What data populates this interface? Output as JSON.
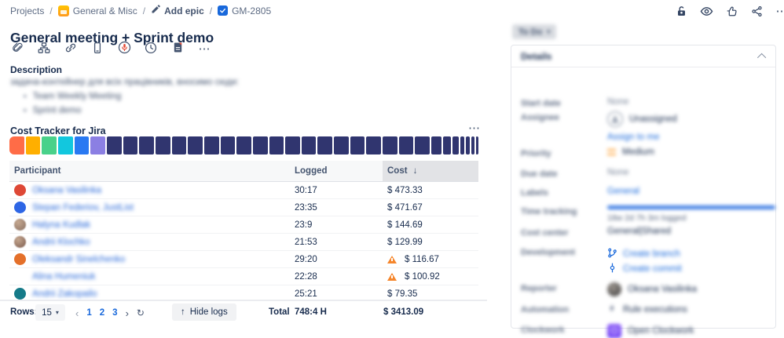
{
  "colors": {
    "accent": "#1868DB",
    "navy": "#172B4D",
    "warning": "#F5862C",
    "bar_default": "#30356F"
  },
  "icons": {
    "chevron_down": "▾",
    "chevron_left": "‹",
    "chevron_right": "›",
    "arrow_up": "↑",
    "arrow_down": "↓",
    "refresh": "↻",
    "more": "⋯",
    "bullet": "•"
  },
  "breadcrumb": {
    "separator": "/",
    "items": [
      {
        "label": "Projects"
      },
      {
        "label": "General & Misc",
        "icon": "project-icon"
      },
      {
        "label": "Add epic",
        "icon": "pencil-icon"
      },
      {
        "label": "GM-2805",
        "icon": "task-check-icon"
      }
    ]
  },
  "issue": {
    "title": "General meeting + Sprint demo"
  },
  "toolbar": {
    "icons": [
      "attachment",
      "subtask",
      "link",
      "mobile",
      "recording",
      "clock",
      "report",
      "more"
    ]
  },
  "description": {
    "heading": "Description",
    "text": "задача-контейнер для всіх працівників, вносимо сюди:",
    "bullets": [
      "Team Weekly Meeting",
      "Sprint demo"
    ]
  },
  "cost_tracker": {
    "heading": "Cost Tracker for Jira",
    "chart_data": {
      "type": "bar",
      "title": "Cost Tracker for Jira",
      "description": "Segmented cost distribution bar, one segment per logged work item, widths proportional to share",
      "segments": [
        {
          "color": "#FF6C47",
          "w": 19
        },
        {
          "color": "#FFAF00",
          "w": 19
        },
        {
          "color": "#49D18A",
          "w": 19
        },
        {
          "color": "#12C7DE",
          "w": 19
        },
        {
          "color": "#2979F2",
          "w": 19
        },
        {
          "color": "#8B7FE3",
          "w": 19
        },
        {
          "color": "#30356F",
          "w": 19,
          "repeat": 20
        },
        {
          "color": "#30356F",
          "w": 13
        },
        {
          "color": "#30356F",
          "w": 10
        },
        {
          "color": "#30356F",
          "w": 8
        },
        {
          "color": "#30356F",
          "w": 6
        },
        {
          "color": "#30356F",
          "w": 5
        },
        {
          "color": "#30356F",
          "w": 4
        },
        {
          "color": "#30356F",
          "w": 3
        }
      ]
    },
    "table": {
      "columns": [
        "Participant",
        "Logged",
        "Cost"
      ],
      "sorted_by": "Cost",
      "sort_direction": "desc",
      "rows": [
        {
          "name": "Oksana Vasilinka",
          "avatar": {
            "type": "color",
            "color": "#DE4836"
          },
          "logged": "30:17",
          "cost": "$ 473.33",
          "warning": false
        },
        {
          "name": "Stepan Federiov, JustList",
          "avatar": {
            "type": "color",
            "color": "#2E66E5"
          },
          "logged": "23:35",
          "cost": "$ 471.67",
          "warning": false
        },
        {
          "name": "Halyna Kudlak",
          "avatar": {
            "type": "photo",
            "color": "#8A7163"
          },
          "logged": "23:9",
          "cost": "$ 144.69",
          "warning": false
        },
        {
          "name": "Andrii Klochko",
          "avatar": {
            "type": "photo",
            "color": "#7C5B4E"
          },
          "logged": "21:53",
          "cost": "$ 129.99",
          "warning": false
        },
        {
          "name": "Oleksandr Sinelchenko",
          "avatar": {
            "type": "color",
            "color": "#E4702A"
          },
          "logged": "29:20",
          "cost": "$ 116.67",
          "warning": true
        },
        {
          "name": "Alina Humeniuk",
          "avatar": null,
          "logged": "22:28",
          "cost": "$ 100.92",
          "warning": true
        },
        {
          "name": "Andrii Zakopailo",
          "avatar": {
            "type": "color",
            "color": "#157A88"
          },
          "logged": "25:21",
          "cost": "$ 79.35",
          "warning": false
        }
      ],
      "footer": {
        "rows_label": "Rows:",
        "rows_per_page": "15",
        "pages": [
          "1",
          "2",
          "3"
        ],
        "hide_logs_label": "Hide logs",
        "total_label": "Total",
        "total_hours": "748:4 H",
        "total_cost": "$ 3413.09"
      }
    }
  },
  "header_actions": [
    "unlock",
    "watch",
    "like",
    "share",
    "more"
  ],
  "status": {
    "label": "To Do"
  },
  "details": {
    "heading": "Details",
    "fields": [
      {
        "label": "Start date",
        "kind": "muted",
        "value": "None"
      },
      {
        "label": "Assignee",
        "kind": "assignee",
        "value": "Unassigned",
        "action": "Assign to me"
      },
      {
        "label": "Priority",
        "kind": "priority",
        "value": "Medium"
      },
      {
        "label": "Due date",
        "kind": "muted",
        "value": "None"
      },
      {
        "label": "Labels",
        "kind": "link",
        "value": "General"
      },
      {
        "label": "Time tracking",
        "kind": "progress",
        "value": "18w 2d 7h 3m logged"
      },
      {
        "label": "Cost center",
        "kind": "text",
        "value": "General|Shared"
      },
      {
        "label": "Development",
        "kind": "dev",
        "links": [
          "Create branch",
          "Create commit"
        ]
      },
      {
        "label": "Reporter",
        "kind": "avatar-name",
        "value": "Oksana Vasilinka"
      },
      {
        "label": "Automation",
        "kind": "bolt-text",
        "value": "Rule executions"
      },
      {
        "label": "Clockwork",
        "kind": "clockwork",
        "value": "Open Clockwork"
      }
    ]
  }
}
